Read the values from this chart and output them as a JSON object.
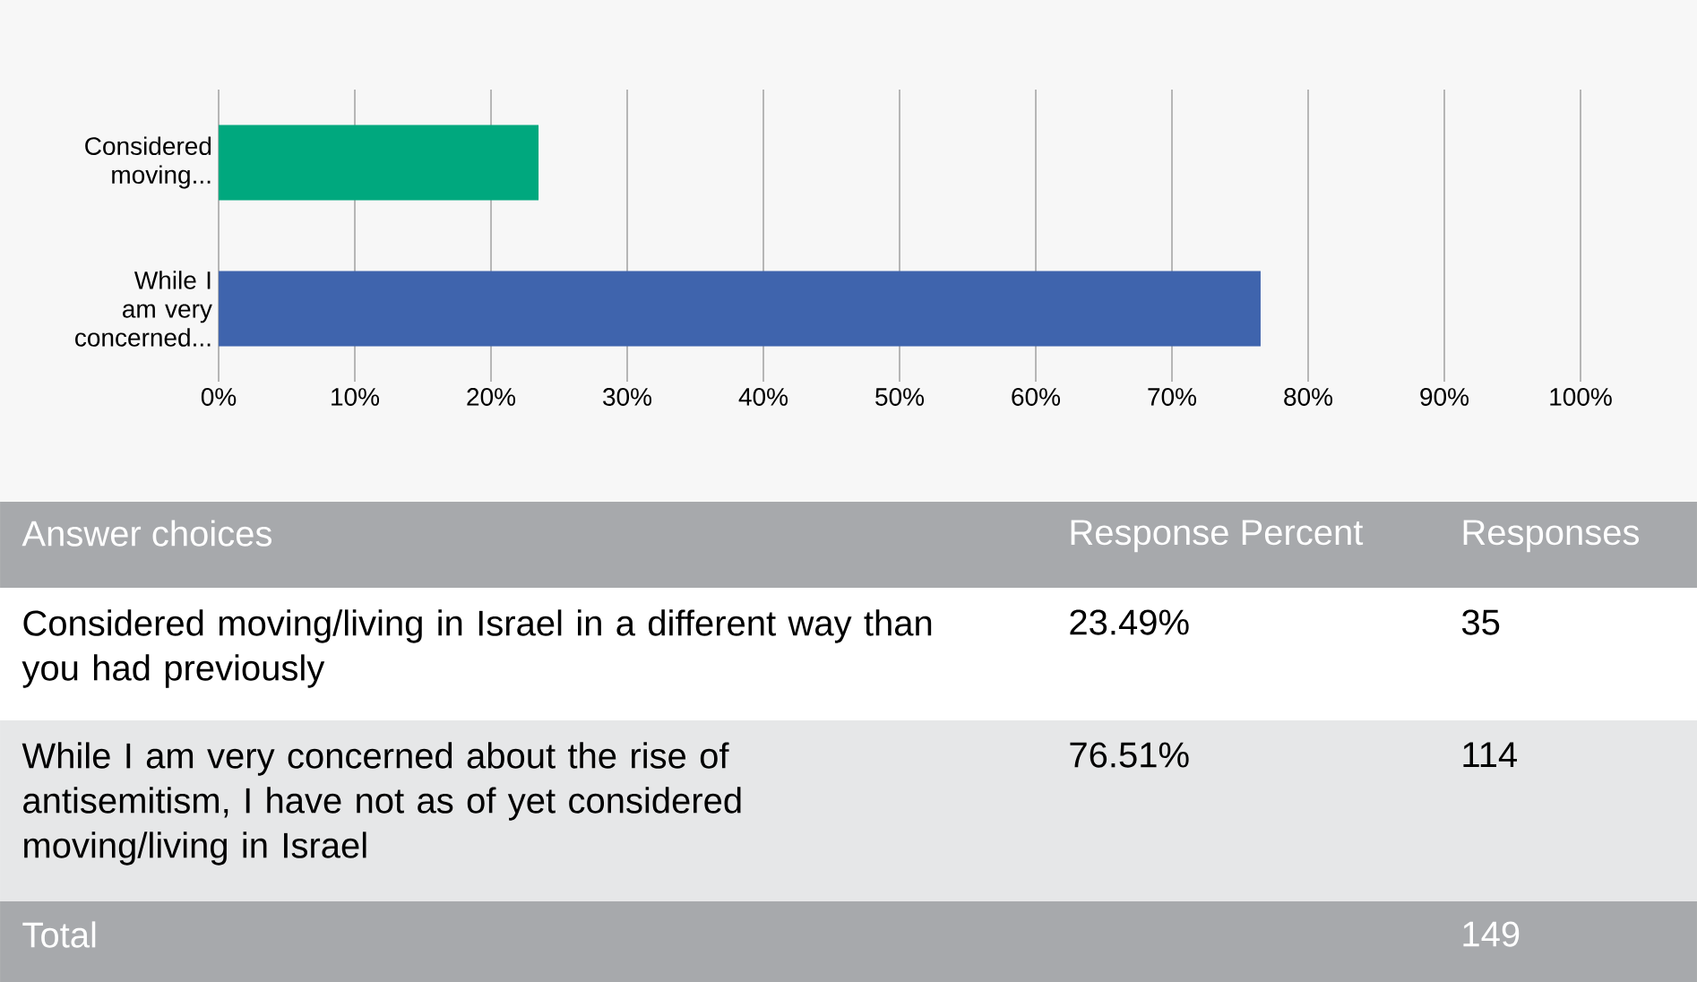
{
  "chart_data": {
    "type": "bar",
    "orientation": "horizontal",
    "categories": [
      "Considered moving...",
      "While I am very concerned..."
    ],
    "values": [
      23.49,
      76.51
    ],
    "colors": [
      "#00a87e",
      "#3f64ad"
    ],
    "xlim": [
      0,
      100
    ],
    "xticks": [
      {
        "value": 0,
        "label": "0%"
      },
      {
        "value": 10,
        "label": "10%"
      },
      {
        "value": 20,
        "label": "20%"
      },
      {
        "value": 30,
        "label": "30%"
      },
      {
        "value": 40,
        "label": "40%"
      },
      {
        "value": 50,
        "label": "50%"
      },
      {
        "value": 60,
        "label": "60%"
      },
      {
        "value": 70,
        "label": "70%"
      },
      {
        "value": 80,
        "label": "80%"
      },
      {
        "value": 90,
        "label": "90%"
      },
      {
        "value": 100,
        "label": "100%"
      }
    ],
    "grid": "x",
    "annotations": [
      "Answer choices",
      "Response Percent",
      "Responses",
      "Considered moving/living in Israel in a different way than you had previously",
      "While I am very concerned about the rise of antisemitism, I have not as of yet considered moving/living in Israel",
      "35",
      "114",
      "Total",
      "149",
      "23.49%",
      "76.51%"
    ]
  }
}
